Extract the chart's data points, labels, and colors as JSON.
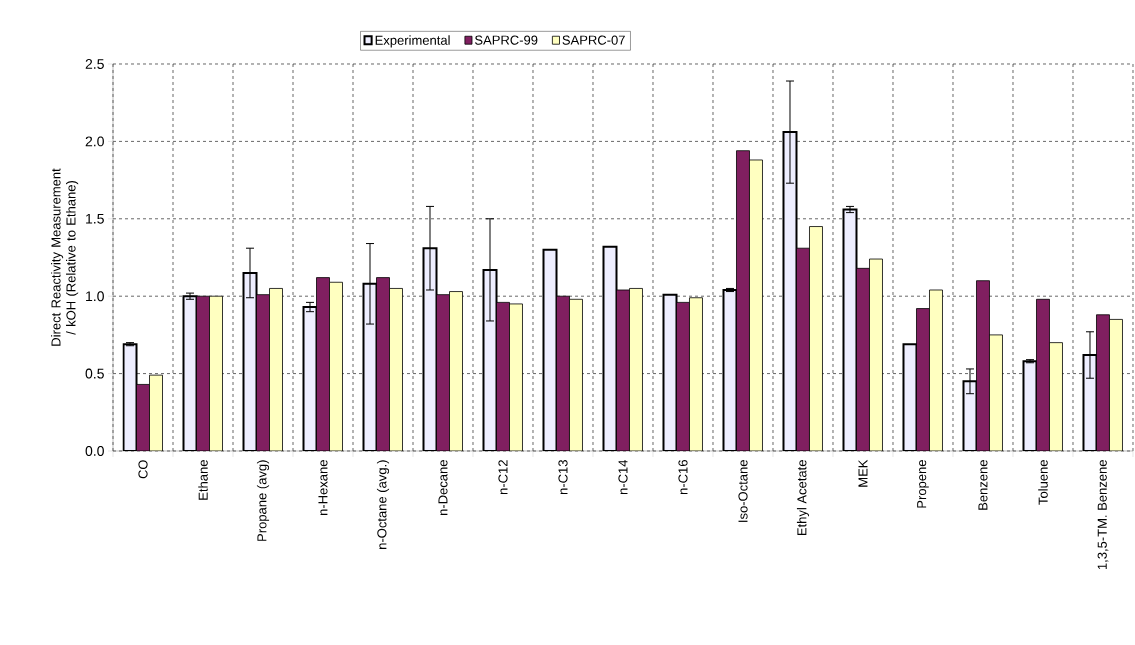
{
  "chart_data": {
    "type": "bar",
    "ylabel": "Direct Reactivity Measurement / kOH (Relative to Ethane)",
    "categories": [
      "CO",
      "Ethane",
      "Propane (avg)",
      "n-Hexane",
      "n-Octane (avg.)",
      "n-Decane",
      "n-C12",
      "n-C13",
      "n-C14",
      "n-C16",
      "Iso-Octane",
      "Ethyl Acetate",
      "MEK",
      "Propene",
      "Benzene",
      "Toluene",
      "1,3,5-TM. Benzene"
    ],
    "series": [
      {
        "name": "Experimental",
        "color": "#eeeeff",
        "values": [
          0.69,
          1.0,
          1.15,
          0.93,
          1.08,
          1.31,
          1.17,
          1.3,
          1.32,
          1.01,
          1.04,
          2.06,
          1.56,
          0.69,
          0.45,
          0.58,
          0.62
        ],
        "errors": [
          0.01,
          0.02,
          0.16,
          0.03,
          0.26,
          0.27,
          0.33,
          null,
          null,
          null,
          0.01,
          0.33,
          0.02,
          null,
          0.08,
          0.01,
          0.15
        ]
      },
      {
        "name": "SAPRC-99",
        "color": "#801f60",
        "values": [
          0.43,
          1.0,
          1.01,
          1.12,
          1.12,
          1.01,
          0.96,
          1.0,
          1.04,
          0.96,
          1.94,
          1.31,
          1.18,
          0.92,
          1.1,
          0.98,
          0.88
        ]
      },
      {
        "name": "SAPRC-07",
        "color": "#ffffc0",
        "values": [
          0.49,
          1.0,
          1.05,
          1.09,
          1.05,
          1.03,
          0.95,
          0.98,
          1.05,
          0.99,
          1.88,
          1.45,
          1.24,
          1.04,
          0.75,
          0.7,
          0.85
        ]
      }
    ],
    "ylim": [
      0,
      2.5
    ],
    "yticks": [
      {
        "value": 0,
        "label": "0.0"
      },
      {
        "value": 0.5,
        "label": "0.5"
      },
      {
        "value": 1,
        "label": "1.0"
      },
      {
        "value": 1.5,
        "label": "1.5"
      },
      {
        "value": 2,
        "label": "2.0"
      },
      {
        "value": 2.5,
        "label": "2.5"
      }
    ],
    "grid": true,
    "legend": "top"
  }
}
